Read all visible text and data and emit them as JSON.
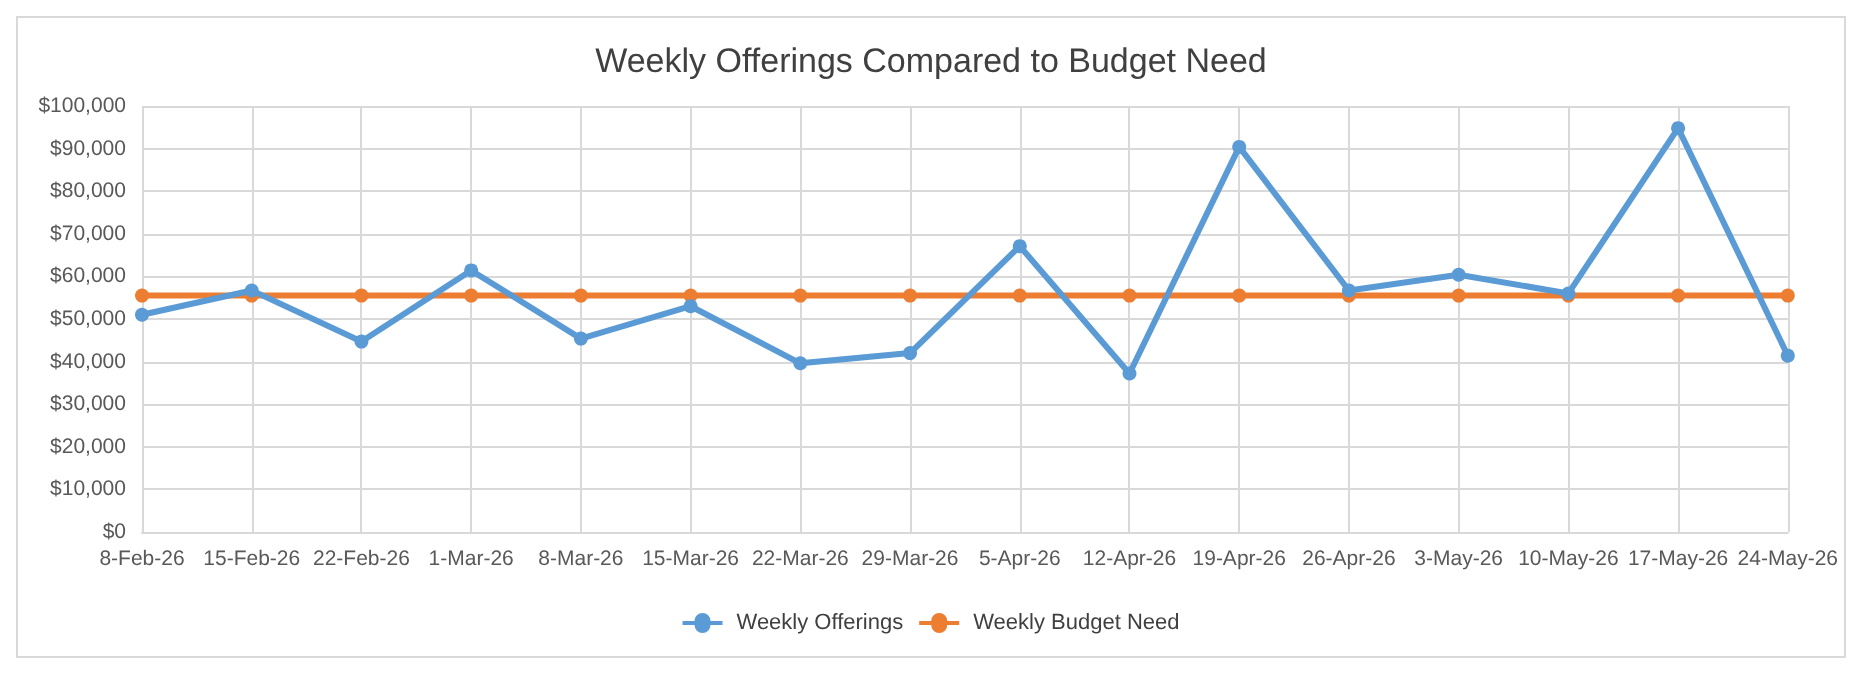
{
  "chart_data": {
    "type": "line",
    "title": "Weekly Offerings Compared to Budget Need",
    "categories": [
      "8-Feb-26",
      "15-Feb-26",
      "22-Feb-26",
      "1-Mar-26",
      "8-Mar-26",
      "15-Mar-26",
      "22-Mar-26",
      "29-Mar-26",
      "5-Apr-26",
      "12-Apr-26",
      "19-Apr-26",
      "26-Apr-26",
      "3-May-26",
      "10-May-26",
      "17-May-26",
      "24-May-26"
    ],
    "series": [
      {
        "name": "Weekly Offerings",
        "color": "#5b9bd5",
        "values": [
          51000,
          56700,
          44700,
          61400,
          45400,
          53000,
          39600,
          42000,
          67100,
          37200,
          90400,
          56700,
          60400,
          56000,
          94800,
          41400
        ]
      },
      {
        "name": "Weekly Budget Need",
        "color": "#ed7d31",
        "values": [
          55500,
          55500,
          55500,
          55500,
          55500,
          55500,
          55500,
          55500,
          55500,
          55500,
          55500,
          55500,
          55500,
          55500,
          55500,
          55500
        ]
      }
    ],
    "ylim": [
      0,
      100000
    ],
    "yticks": [
      {
        "value": 0,
        "label": "$0"
      },
      {
        "value": 10000,
        "label": "$10,000"
      },
      {
        "value": 20000,
        "label": "$20,000"
      },
      {
        "value": 30000,
        "label": "$30,000"
      },
      {
        "value": 40000,
        "label": "$40,000"
      },
      {
        "value": 50000,
        "label": "$50,000"
      },
      {
        "value": 60000,
        "label": "$60,000"
      },
      {
        "value": 70000,
        "label": "$70,000"
      },
      {
        "value": 80000,
        "label": "$80,000"
      },
      {
        "value": 90000,
        "label": "$90,000"
      },
      {
        "value": 100000,
        "label": "$100,000"
      }
    ],
    "grid": true,
    "legend": "bottom",
    "marker": "circle",
    "line_style": "solid"
  }
}
